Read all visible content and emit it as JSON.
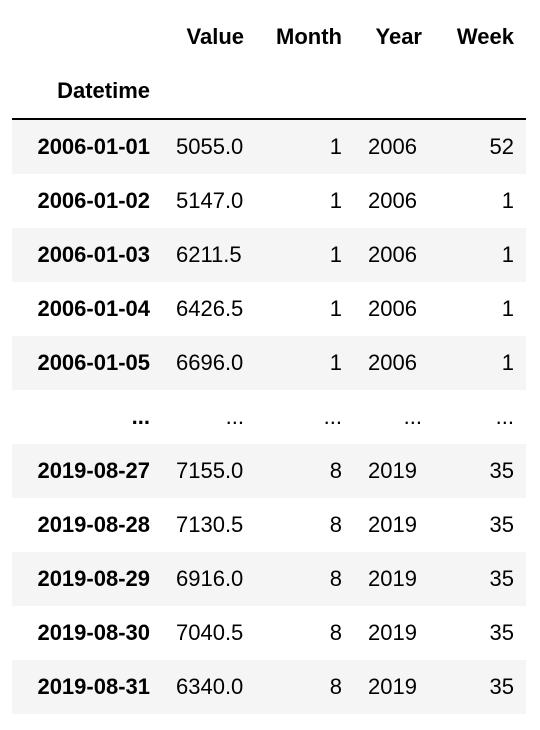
{
  "dataframe": {
    "columns": [
      "Value",
      "Month",
      "Year",
      "Week"
    ],
    "index_name": "Datetime",
    "rows": [
      {
        "index": "2006-01-01",
        "value": "5055.0",
        "month": "1",
        "year": "2006",
        "week": "52"
      },
      {
        "index": "2006-01-02",
        "value": "5147.0",
        "month": "1",
        "year": "2006",
        "week": "1"
      },
      {
        "index": "2006-01-03",
        "value": "6211.5",
        "month": "1",
        "year": "2006",
        "week": "1"
      },
      {
        "index": "2006-01-04",
        "value": "6426.5",
        "month": "1",
        "year": "2006",
        "week": "1"
      },
      {
        "index": "2006-01-05",
        "value": "6696.0",
        "month": "1",
        "year": "2006",
        "week": "1"
      },
      {
        "index": "...",
        "value": "...",
        "month": "...",
        "year": "...",
        "week": "..."
      },
      {
        "index": "2019-08-27",
        "value": "7155.0",
        "month": "8",
        "year": "2019",
        "week": "35"
      },
      {
        "index": "2019-08-28",
        "value": "7130.5",
        "month": "8",
        "year": "2019",
        "week": "35"
      },
      {
        "index": "2019-08-29",
        "value": "6916.0",
        "month": "8",
        "year": "2019",
        "week": "35"
      },
      {
        "index": "2019-08-30",
        "value": "7040.5",
        "month": "8",
        "year": "2019",
        "week": "35"
      },
      {
        "index": "2019-08-31",
        "value": "6340.0",
        "month": "8",
        "year": "2019",
        "week": "35"
      }
    ]
  }
}
